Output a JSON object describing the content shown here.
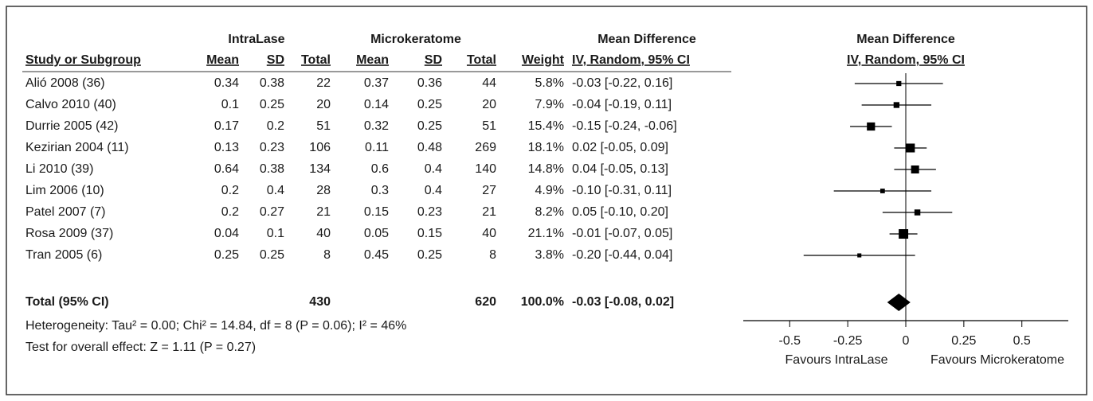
{
  "chart_data": {
    "type": "forest",
    "group_headers": [
      "IntraLase",
      "Microkeratome",
      "Mean Difference"
    ],
    "plot_title": "Mean Difference",
    "plot_subtitle": "IV, Random, 95% CI",
    "columns": [
      "Study or Subgroup",
      "Mean",
      "SD",
      "Total",
      "Mean",
      "SD",
      "Total",
      "Weight",
      "IV, Random, 95% CI"
    ],
    "studies": [
      {
        "name": "Alió 2008 (36)",
        "mean1": 0.34,
        "sd1": 0.38,
        "n1": 22,
        "mean2": 0.37,
        "sd2": 0.36,
        "n2": 44,
        "weight": {
          "value": 5.8,
          "label": "5.8%"
        },
        "md": {
          "value": -0.03,
          "lo": -0.22,
          "hi": 0.16,
          "label": "-0.03 [-0.22, 0.16]"
        }
      },
      {
        "name": "Calvo 2010 (40)",
        "mean1": 0.1,
        "sd1": 0.25,
        "n1": 20,
        "mean2": 0.14,
        "sd2": 0.25,
        "n2": 20,
        "weight": {
          "value": 7.9,
          "label": "7.9%"
        },
        "md": {
          "value": -0.04,
          "lo": -0.19,
          "hi": 0.11,
          "label": "-0.04 [-0.19, 0.11]"
        }
      },
      {
        "name": "Durrie 2005 (42)",
        "mean1": 0.17,
        "sd1": 0.2,
        "n1": 51,
        "mean2": 0.32,
        "sd2": 0.25,
        "n2": 51,
        "weight": {
          "value": 15.4,
          "label": "15.4%"
        },
        "md": {
          "value": -0.15,
          "lo": -0.24,
          "hi": -0.06,
          "label": "-0.15 [-0.24, -0.06]"
        }
      },
      {
        "name": "Kezirian 2004 (11)",
        "mean1": 0.13,
        "sd1": 0.23,
        "n1": 106,
        "mean2": 0.11,
        "sd2": 0.48,
        "n2": 269,
        "weight": {
          "value": 18.1,
          "label": "18.1%"
        },
        "md": {
          "value": 0.02,
          "lo": -0.05,
          "hi": 0.09,
          "label": "0.02 [-0.05, 0.09]"
        }
      },
      {
        "name": "Li 2010 (39)",
        "mean1": 0.64,
        "sd1": 0.38,
        "n1": 134,
        "mean2": 0.6,
        "sd2": 0.4,
        "n2": 140,
        "weight": {
          "value": 14.8,
          "label": "14.8%"
        },
        "md": {
          "value": 0.04,
          "lo": -0.05,
          "hi": 0.13,
          "label": "0.04 [-0.05, 0.13]"
        }
      },
      {
        "name": "Lim 2006 (10)",
        "mean1": 0.2,
        "sd1": 0.4,
        "n1": 28,
        "mean2": 0.3,
        "sd2": 0.4,
        "n2": 27,
        "weight": {
          "value": 4.9,
          "label": "4.9%"
        },
        "md": {
          "value": -0.1,
          "lo": -0.31,
          "hi": 0.11,
          "label": "-0.10 [-0.31, 0.11]"
        }
      },
      {
        "name": "Patel 2007 (7)",
        "mean1": 0.2,
        "sd1": 0.27,
        "n1": 21,
        "mean2": 0.15,
        "sd2": 0.23,
        "n2": 21,
        "weight": {
          "value": 8.2,
          "label": "8.2%"
        },
        "md": {
          "value": 0.05,
          "lo": -0.1,
          "hi": 0.2,
          "label": "0.05 [-0.10, 0.20]"
        }
      },
      {
        "name": "Rosa 2009 (37)",
        "mean1": 0.04,
        "sd1": 0.1,
        "n1": 40,
        "mean2": 0.05,
        "sd2": 0.15,
        "n2": 40,
        "weight": {
          "value": 21.1,
          "label": "21.1%"
        },
        "md": {
          "value": -0.01,
          "lo": -0.07,
          "hi": 0.05,
          "label": "-0.01 [-0.07, 0.05]"
        }
      },
      {
        "name": "Tran 2005 (6)",
        "mean1": 0.25,
        "sd1": 0.25,
        "n1": 8,
        "mean2": 0.45,
        "sd2": 0.25,
        "n2": 8,
        "weight": {
          "value": 3.8,
          "label": "3.8%"
        },
        "md": {
          "value": -0.2,
          "lo": -0.44,
          "hi": 0.04,
          "label": "-0.20 [-0.44, 0.04]"
        }
      }
    ],
    "total": {
      "name": "Total (95% CI)",
      "n1": 430,
      "n2": 620,
      "weight": {
        "value": 100,
        "label": "100.0%"
      },
      "md": {
        "value": -0.03,
        "lo": -0.08,
        "hi": 0.02,
        "label": "-0.03 [-0.08, 0.02]"
      }
    },
    "heterogeneity": "Heterogeneity: Tau² = 0.00; Chi² = 14.84, df = 8 (P = 0.06); I² = 46%",
    "overall_effect": "Test for overall effect: Z = 1.11 (P = 0.27)",
    "xlim": [
      -0.7,
      0.7
    ],
    "xticks": [
      -0.5,
      -0.25,
      0,
      0.25,
      0.5
    ],
    "favours_left": "Favours IntraLase",
    "favours_right": "Favours Microkeratome",
    "color": "#000000"
  }
}
